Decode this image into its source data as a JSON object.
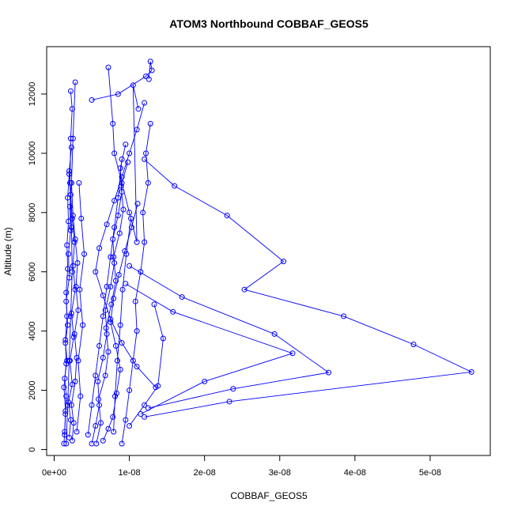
{
  "chart_data": {
    "type": "line",
    "title": "ATOM3 Northbound COBBAF_GEOS5",
    "xlabel": "COBBAF_GEOS5",
    "ylabel": "Altitude (m)",
    "xlim": [
      -1e-09,
      5.8e-08
    ],
    "ylim": [
      -200,
      13600
    ],
    "x_ticks": [
      0,
      1e-08,
      2e-08,
      3e-08,
      4e-08,
      5e-08
    ],
    "x_tick_labels": [
      "0e+00",
      "1e-08",
      "2e-08",
      "3e-08",
      "4e-08",
      "5e-08"
    ],
    "y_ticks": [
      0,
      2000,
      4000,
      6000,
      8000,
      10000,
      12000
    ],
    "y_tick_labels": [
      "0",
      "2000",
      "4000",
      "6000",
      "8000",
      "10000",
      "12000"
    ],
    "grid": false,
    "legend": "none",
    "series_color": "#0000ff",
    "marker": "open-circle",
    "series": [
      {
        "x": [
          1.3e-09,
          1.4e-09,
          1.5e-09,
          1.6e-09,
          1.4e-09,
          1.7e-09,
          1.5e-09,
          1.8e-09,
          1.6e-09,
          2e-09,
          1.9e-09,
          2.2e-09,
          2.1e-09,
          2.3e-09
        ],
        "y": [
          200,
          600,
          1200,
          1800,
          2400,
          3000,
          3600,
          4200,
          5000,
          5800,
          6600,
          7400,
          8200,
          9000
        ]
      },
      {
        "x": [
          2e-09,
          2.2e-09,
          1.9e-09,
          2.4e-09,
          2.1e-09,
          2.6e-09,
          2.3e-09,
          2.8e-09,
          2.5e-09,
          2.7e-09,
          2.4e-09,
          2.2e-09,
          2e-09,
          2.3e-09
        ],
        "y": [
          400,
          1000,
          1600,
          2200,
          3000,
          3800,
          4600,
          5400,
          6200,
          7000,
          7800,
          8600,
          9400,
          10200
        ]
      },
      {
        "x": [
          2.4e-09,
          2.6e-09,
          2.3e-09,
          2.8e-09,
          3e-09,
          2.7e-09,
          3.2e-09,
          2.9e-09,
          3.1e-09,
          2.8e-09,
          2.5e-09,
          2.3e-09,
          2.5e-09,
          2.8e-09
        ],
        "y": [
          300,
          900,
          1500,
          2300,
          3100,
          3900,
          4700,
          5500,
          6300,
          7100,
          7900,
          9000,
          10500,
          12400
        ]
      },
      {
        "x": [
          1.6e-09,
          1.8e-09,
          2e-09,
          2.2e-09,
          2.4e-09,
          2.3e-09,
          2.1e-09,
          2.2e-09,
          2.4e-09,
          2.2e-09
        ],
        "y": [
          200,
          1500,
          3000,
          4500,
          6000,
          7500,
          9000,
          10500,
          11500,
          12100
        ]
      },
      {
        "x": [
          5e-09,
          5.5e-09,
          6e-09,
          5.8e-09,
          6.5e-09,
          7e-09,
          6.8e-09,
          7.5e-09,
          8e-09,
          7.8e-09,
          8.5e-09,
          9e-09,
          8.8e-09,
          9.5e-09
        ],
        "y": [
          200,
          800,
          1500,
          2300,
          3100,
          3900,
          4700,
          5500,
          6300,
          7100,
          7900,
          8700,
          9500,
          10300
        ]
      },
      {
        "x": [
          5.6e-09,
          6.2e-09,
          5.9e-09,
          6.8e-09,
          7.2e-09,
          6.9e-09,
          7.6e-09,
          8.2e-09,
          7.9e-09,
          8.7e-09,
          9.2e-09,
          8.9e-09,
          9.8e-09
        ],
        "y": [
          200,
          900,
          1700,
          2500,
          3300,
          4100,
          4900,
          5700,
          6500,
          7300,
          8100,
          8900,
          9700
        ]
      },
      {
        "x": [
          9e-09,
          9.5e-09,
          1e-08,
          1.05e-08,
          1.1e-08,
          1.08e-08,
          1.15e-08,
          1.2e-08,
          1.18e-08,
          1.25e-08,
          1.22e-08,
          1.28e-08
        ],
        "y": [
          200,
          1000,
          2000,
          3000,
          4000,
          5000,
          6000,
          7000,
          8000,
          9000,
          10000,
          11000
        ]
      },
      {
        "x": [
          4.5e-09,
          5e-09,
          5.5e-09,
          6e-09,
          6.5e-09,
          7e-09,
          7.5e-09,
          8e-09,
          8.5e-09,
          9e-09
        ],
        "y": [
          500,
          1500,
          2500,
          3500,
          4500,
          5500,
          6500,
          7500,
          8500,
          9800
        ]
      },
      {
        "x": [
          1.35e-08,
          1.1e-08,
          9e-09,
          7.5e-09,
          6.5e-09,
          5.5e-09,
          6e-09,
          7e-09,
          8e-09,
          9e-09,
          1e-08,
          1.1e-08,
          1.2e-08
        ],
        "y": [
          2100,
          2800,
          3600,
          4400,
          5200,
          6000,
          6800,
          7600,
          8400,
          9200,
          10000,
          10800,
          11700
        ]
      },
      {
        "x": [
          5e-09,
          8.5e-09,
          1.22e-08,
          1.3e-08,
          1.28e-08,
          1.26e-08
        ],
        "y": [
          11800,
          12000,
          12600,
          12800,
          13100,
          12500
        ]
      },
      {
        "x": [
          7.2e-09,
          7.8e-09,
          8e-09,
          9e-09,
          1e-08,
          1.1e-08,
          1.05e-08,
          1.12e-08
        ],
        "y": [
          12900,
          11000,
          10000,
          9000,
          8000,
          7000,
          12300,
          11500
        ]
      },
      {
        "x": [
          1.2e-08,
          1.6e-08,
          2.3e-08,
          3.05e-08,
          2.53e-08,
          3.85e-08,
          4.78e-08,
          5.55e-08,
          2.33e-08,
          1.2e-08
        ],
        "y": [
          9800,
          8900,
          7900,
          6350,
          5400,
          4500,
          3550,
          2620,
          1620,
          1100
        ]
      },
      {
        "x": [
          1e-08,
          1.7e-08,
          2.93e-08,
          3.65e-08,
          2.38e-08,
          1.25e-08
        ],
        "y": [
          6200,
          5150,
          3900,
          2600,
          2050,
          1400
        ]
      },
      {
        "x": [
          9.5e-09,
          1.58e-08,
          3.17e-08,
          2e-08,
          1.15e-08
        ],
        "y": [
          5600,
          4650,
          3250,
          2300,
          1200
        ]
      },
      {
        "x": [
          1.33e-08,
          1.45e-08,
          1.38e-08,
          1.2e-08,
          1e-08
        ],
        "y": [
          4900,
          3750,
          2150,
          1500,
          800
        ]
      },
      {
        "x": [
          6.5e-09,
          7.2e-09,
          7.8e-09,
          8.3e-09,
          8.8e-09,
          8.2e-09,
          7.5e-09,
          7.9e-09,
          8.6e-09,
          9.4e-09,
          1.03e-08,
          1.11e-08
        ],
        "y": [
          300,
          700,
          1100,
          1900,
          2700,
          3500,
          4300,
          5100,
          5900,
          6700,
          7500,
          8300
        ]
      },
      {
        "x": [
          1.4e-09,
          1.5e-09,
          1.3e-09,
          1.6e-09,
          1.5e-09,
          1.7e-09,
          1.6e-09,
          1.8e-09,
          1.7e-09,
          1.9e-09,
          1.8e-09,
          2e-09
        ],
        "y": [
          500,
          1300,
          2100,
          2900,
          3700,
          4500,
          5300,
          6100,
          6900,
          7700,
          8500,
          9300
        ]
      },
      {
        "x": [
          3e-09,
          3.5e-09,
          3.2e-09,
          3.8e-09,
          3.4e-09,
          4e-09,
          3.6e-09,
          3.3e-09
        ],
        "y": [
          600,
          1800,
          3000,
          4200,
          5400,
          6600,
          7800,
          9000
        ]
      },
      {
        "x": [
          7.9e-09,
          8.1e-09,
          8.4e-09,
          8.8e-09,
          9.1e-09,
          9.6e-09,
          1.02e-08
        ],
        "y": [
          600,
          1800,
          3000,
          4200,
          5400,
          6600,
          7800
        ]
      }
    ]
  }
}
